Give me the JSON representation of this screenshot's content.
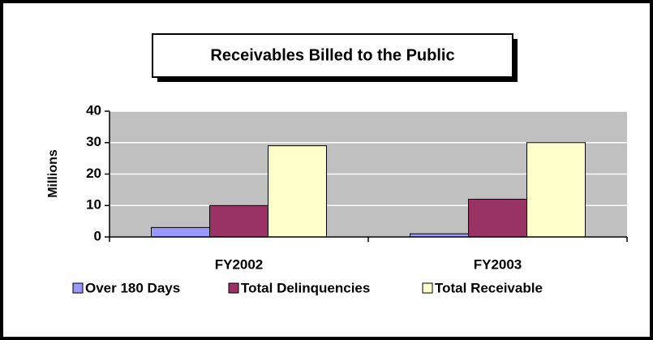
{
  "chart_data": {
    "type": "bar",
    "title": "Receivables Billed to the Public",
    "y_label": "Millions",
    "categories": [
      "FY2002",
      "FY2003"
    ],
    "series": [
      {
        "name": "Over 180 Days",
        "color": "#9999ff",
        "values": [
          3,
          1
        ]
      },
      {
        "name": "Total Delinquencies",
        "color": "#993366",
        "values": [
          10,
          12
        ]
      },
      {
        "name": "Total Receivable",
        "color": "#ffffcc",
        "values": [
          29,
          30
        ]
      }
    ],
    "ylim": [
      0,
      40
    ],
    "yticks": [
      0,
      10,
      20,
      30,
      40
    ],
    "grid": true,
    "legend": "bottom"
  }
}
